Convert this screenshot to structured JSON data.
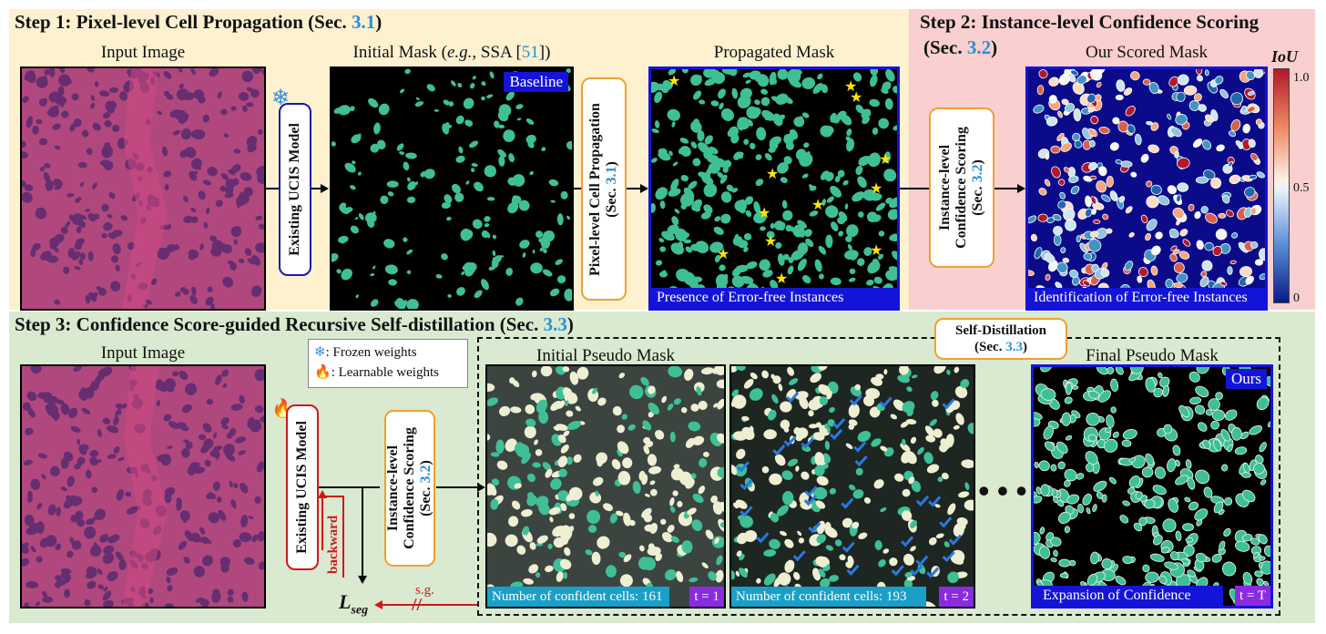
{
  "step1": {
    "title_text": "Step 1: Pixel-level Cell Propagation (Sec. ",
    "title_ref": "3.1",
    "title_end": ")",
    "input_label": "Input Image",
    "initial_mask_label_pre": "Initial Mask (",
    "initial_mask_label_eg": "e.g.,",
    "initial_mask_label_mid": " SSA [",
    "initial_mask_label_ref": "51",
    "initial_mask_label_end": "])",
    "baseline_tag": "Baseline",
    "propagated_label": "Propagated Mask",
    "propagated_caption": "Presence of Error-free Instances",
    "model_box": "Existing UCIS Model",
    "prop_box_line1": "Pixel-level Cell Propagation",
    "prop_box_line2_pre": "(Sec. ",
    "prop_box_line2_ref": "3.1",
    "prop_box_line2_end": ")"
  },
  "step2": {
    "title_text": "Step 2: Instance-level Confidence Scoring",
    "title_line2_pre": "(Sec. ",
    "title_line2_ref": "3.2",
    "title_line2_end": ")",
    "scored_label": "Our Scored Mask",
    "scored_caption": "Identification of Error-free Instances",
    "scoring_box_line1": "Instance-level",
    "scoring_box_line2": "Confidence Scoring",
    "scoring_box_line3_pre": "(Sec. ",
    "scoring_box_line3_ref": "3.2",
    "scoring_box_line3_end": ")",
    "colorbar_title": "IoU",
    "colorbar_ticks": [
      "1.0",
      "0.5",
      "0"
    ]
  },
  "step3": {
    "title_text": "Step 3: Confidence Score-guided Recursive Self-distillation (Sec. ",
    "title_ref": "3.3",
    "title_end": ")",
    "input_label": "Input Image",
    "legend_frozen": ": Frozen weights",
    "legend_learnable": ": Learnable weights",
    "model_box": "Existing UCIS Model",
    "backward_label": "backward",
    "scoring_box_line1": "Instance-level",
    "scoring_box_line2": "Confidence Scoring",
    "scoring_box_line3_pre": "(Sec. ",
    "scoring_box_line3_ref": "3.2",
    "scoring_box_line3_end": ")",
    "self_distill_line1": "Self-Distillation",
    "self_distill_line2_pre": "(Sec. ",
    "self_distill_line2_ref": "3.3",
    "self_distill_line2_end": ")",
    "initial_pseudo_label": "Initial Pseudo Mask",
    "final_pseudo_label": "Final Pseudo Mask",
    "ours_tag": "Ours",
    "cell_count_1": "Number of confident cells: 161",
    "t1": "t = 1",
    "cell_count_2": "Number of confident cells: 193",
    "t2": "t = 2",
    "final_caption": "Expansion of Confidence",
    "tT": "t = T",
    "loss_label": "L",
    "loss_sub": "seg",
    "sg_label": "s.g."
  },
  "colors": {
    "step1_bg": "#fdf1cf",
    "step2_bg": "#f9cfcf",
    "step3_bg": "#d9ead0",
    "accent_blue": "#1414d8",
    "ref_blue": "#2b8fd6",
    "mask_green": "#3fbf95",
    "model_box_border_blue": "#1a1aa8",
    "model_box_border_red": "#d01818",
    "scoring_box_border": "#f0a030",
    "time_tag_purple": "#8a2be2",
    "count_tag_cyan": "#1aa0c8"
  }
}
